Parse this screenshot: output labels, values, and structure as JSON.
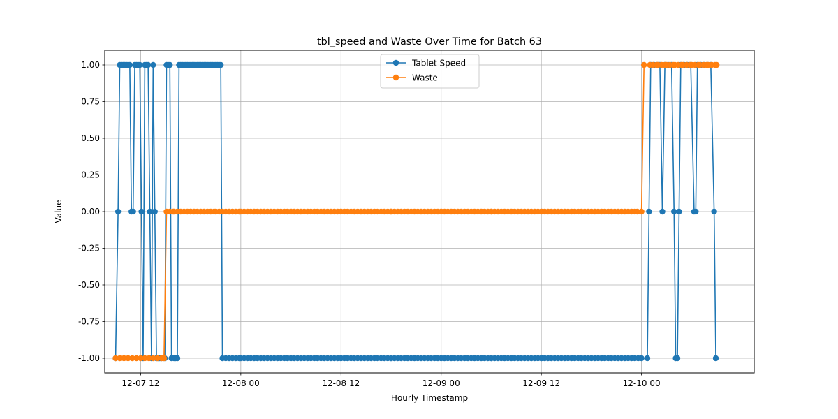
{
  "chart_data": {
    "type": "line",
    "title": "tbl_speed and Waste Over Time for Batch 63",
    "xlabel": "Hourly Timestamp",
    "ylabel": "Value",
    "x_unit": "hours since 12-07 00",
    "x_ticks": [
      {
        "hours": 12,
        "label": "12-07 12"
      },
      {
        "hours": 24,
        "label": "12-08 00"
      },
      {
        "hours": 36,
        "label": "12-08 12"
      },
      {
        "hours": 48,
        "label": "12-09 00"
      },
      {
        "hours": 60,
        "label": "12-09 12"
      },
      {
        "hours": 72,
        "label": "12-10 00"
      }
    ],
    "xlim": [
      7.7,
      85.5
    ],
    "ylim": [
      -1.1,
      1.1
    ],
    "y_ticks": [
      -1.0,
      -0.75,
      -0.5,
      -0.25,
      0.0,
      0.25,
      0.5,
      0.75,
      1.0
    ],
    "grid": true,
    "legend": {
      "placement": "upper center"
    },
    "series": [
      {
        "name": "Tablet Speed",
        "color": "#1f77b4",
        "points": [
          [
            9.0,
            -1
          ],
          [
            9.3,
            0
          ],
          [
            9.5,
            1
          ],
          [
            9.7,
            1
          ],
          [
            9.9,
            1
          ],
          [
            10.1,
            1
          ],
          [
            10.3,
            1
          ],
          [
            10.5,
            1
          ],
          [
            10.7,
            1
          ],
          [
            10.9,
            0
          ],
          [
            11.1,
            0
          ],
          [
            11.3,
            1
          ],
          [
            11.5,
            1
          ],
          [
            11.7,
            1
          ],
          [
            11.9,
            1
          ],
          [
            12.1,
            0
          ],
          [
            12.3,
            -1
          ],
          [
            12.5,
            1
          ],
          [
            12.7,
            1
          ],
          [
            12.9,
            1
          ],
          [
            13.1,
            0
          ],
          [
            13.3,
            -1
          ],
          [
            13.5,
            1
          ],
          [
            13.7,
            0
          ],
          [
            13.9,
            -1
          ],
          [
            14.1,
            -1
          ],
          [
            14.3,
            -1
          ],
          [
            14.5,
            -1
          ],
          [
            14.7,
            -1
          ],
          [
            14.9,
            -1
          ],
          [
            15.1,
            1
          ],
          [
            15.3,
            1
          ],
          [
            15.5,
            1
          ],
          [
            15.7,
            -1
          ],
          [
            16.0,
            -1
          ],
          [
            16.2,
            -1
          ],
          [
            16.4,
            -1
          ],
          [
            16.6,
            1
          ],
          [
            16.8,
            1
          ],
          [
            17.0,
            1
          ],
          [
            17.2,
            1
          ],
          [
            17.4,
            1
          ],
          [
            17.6,
            1
          ],
          [
            17.8,
            1
          ],
          [
            18.0,
            1
          ],
          [
            18.2,
            1
          ],
          [
            18.4,
            1
          ],
          [
            18.6,
            1
          ],
          [
            18.8,
            1
          ],
          [
            19.0,
            1
          ],
          [
            19.2,
            1
          ],
          [
            19.4,
            1
          ],
          [
            19.6,
            1
          ],
          [
            19.8,
            1
          ],
          [
            20.0,
            1
          ],
          [
            20.2,
            1
          ],
          [
            20.4,
            1
          ],
          [
            20.6,
            1
          ],
          [
            20.8,
            1
          ],
          [
            21.0,
            1
          ],
          [
            21.2,
            1
          ],
          [
            21.4,
            1
          ],
          [
            21.6,
            1
          ],
          [
            21.8,
            -1
          ],
          [
            24,
            -1
          ],
          [
            30,
            -1
          ],
          [
            36,
            -1
          ],
          [
            42,
            -1
          ],
          [
            48,
            -1
          ],
          [
            54,
            -1
          ],
          [
            60,
            -1
          ],
          [
            66,
            -1
          ],
          [
            72,
            -1
          ],
          [
            72.7,
            -1
          ],
          [
            72.9,
            0
          ],
          [
            73.1,
            1
          ],
          [
            73.5,
            1
          ],
          [
            73.9,
            1
          ],
          [
            74.2,
            1
          ],
          [
            74.5,
            0
          ],
          [
            74.8,
            1
          ],
          [
            75.2,
            1
          ],
          [
            75.6,
            1
          ],
          [
            75.9,
            0
          ],
          [
            76.1,
            -1
          ],
          [
            76.3,
            -1
          ],
          [
            76.5,
            0
          ],
          [
            76.7,
            1
          ],
          [
            77.1,
            1
          ],
          [
            77.5,
            1
          ],
          [
            77.9,
            1
          ],
          [
            78.3,
            0
          ],
          [
            78.5,
            0
          ],
          [
            78.7,
            1
          ],
          [
            79.1,
            1
          ],
          [
            79.5,
            1
          ],
          [
            79.9,
            1
          ],
          [
            80.3,
            1
          ],
          [
            80.7,
            0
          ],
          [
            80.9,
            -1
          ]
        ]
      },
      {
        "name": "Waste",
        "color": "#ff7f0e",
        "points": [
          [
            9.0,
            -1
          ],
          [
            9.5,
            -1
          ],
          [
            10,
            -1
          ],
          [
            10.5,
            -1
          ],
          [
            11,
            -1
          ],
          [
            11.5,
            -1
          ],
          [
            12,
            -1
          ],
          [
            12.5,
            -1
          ],
          [
            13,
            -1
          ],
          [
            13.5,
            -1
          ],
          [
            14,
            -1
          ],
          [
            14.5,
            -1
          ],
          [
            14.8,
            -1
          ],
          [
            15.1,
            0
          ],
          [
            16,
            0
          ],
          [
            18,
            0
          ],
          [
            21,
            0
          ],
          [
            24,
            0
          ],
          [
            30,
            0
          ],
          [
            36,
            0
          ],
          [
            42,
            0
          ],
          [
            48,
            0
          ],
          [
            54,
            0
          ],
          [
            60,
            0
          ],
          [
            66,
            0
          ],
          [
            71.5,
            0
          ],
          [
            72.0,
            0
          ],
          [
            72.3,
            1
          ],
          [
            73,
            1
          ],
          [
            74,
            1
          ],
          [
            75,
            1
          ],
          [
            76,
            1
          ],
          [
            77,
            1
          ],
          [
            78,
            1
          ],
          [
            79,
            1
          ],
          [
            80,
            1
          ],
          [
            81.0,
            1
          ]
        ]
      }
    ]
  }
}
